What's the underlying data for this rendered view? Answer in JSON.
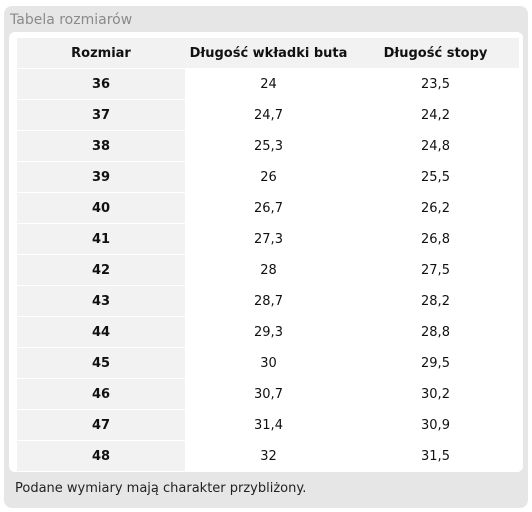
{
  "panel": {
    "title": "Tabela rozmiarów"
  },
  "table": {
    "headers": [
      "Rozmiar",
      "Długość wkładki buta",
      "Długość stopy"
    ],
    "rows": [
      [
        "36",
        "24",
        "23,5"
      ],
      [
        "37",
        "24,7",
        "24,2"
      ],
      [
        "38",
        "25,3",
        "24,8"
      ],
      [
        "39",
        "26",
        "25,5"
      ],
      [
        "40",
        "26,7",
        "26,2"
      ],
      [
        "41",
        "27,3",
        "26,8"
      ],
      [
        "42",
        "28",
        "27,5"
      ],
      [
        "43",
        "28,7",
        "28,2"
      ],
      [
        "44",
        "29,3",
        "28,8"
      ],
      [
        "45",
        "30",
        "29,5"
      ],
      [
        "46",
        "30,7",
        "30,2"
      ],
      [
        "47",
        "31,4",
        "30,9"
      ],
      [
        "48",
        "32",
        "31,5"
      ]
    ]
  },
  "footnote": "Podane wymiary mają charakter przybliżony."
}
